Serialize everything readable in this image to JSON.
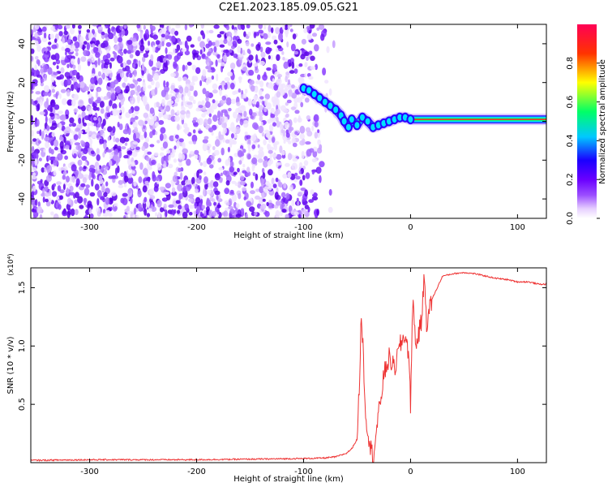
{
  "page": {
    "title": "C2E1.2023.185.09.05.G21"
  },
  "chart_data": [
    {
      "type": "heatmap",
      "xlabel": "Height of straight line (km)",
      "ylabel": "Frequency (Hz)",
      "xlim": [
        -355,
        127
      ],
      "ylim": [
        -50,
        50
      ],
      "x_ticks": [
        -300,
        -200,
        -100,
        0,
        100
      ],
      "y_ticks": [
        -40,
        -20,
        0,
        20,
        40
      ],
      "grid": false,
      "colorbar": {
        "label": "Normalized spectral amplitude",
        "range": [
          0.0,
          1.0
        ],
        "ticks": [
          0.0,
          0.2,
          0.4,
          0.6,
          0.8
        ],
        "colormap": [
          "#ffffff",
          "#e6cfff",
          "#9b4dff",
          "#6a00ff",
          "#1a00ff",
          "#00c8ff",
          "#00ff66",
          "#ffff00",
          "#ff3300",
          "#ff0055"
        ]
      },
      "noise_region": {
        "x_range": [
          -355,
          -70
        ],
        "dominant_color": "#7a1cf0",
        "fade_start_x": -115
      },
      "ridge": {
        "x": [
          -100,
          -95,
          -90,
          -85,
          -80,
          -75,
          -70,
          -65,
          -62,
          -58,
          -55,
          -50,
          -45,
          -40,
          -35,
          -30,
          -25,
          -20,
          -15,
          -10,
          -5,
          0,
          10,
          30,
          50,
          70,
          90,
          110,
          127
        ],
        "y": [
          17,
          16,
          14,
          12,
          10,
          8,
          6,
          3,
          0,
          -3,
          1,
          -2,
          2,
          0,
          -3,
          -2,
          -1,
          0,
          1,
          2,
          2,
          1,
          1,
          1,
          1,
          1,
          1,
          1,
          1
        ]
      }
    },
    {
      "type": "line",
      "xlabel": "Height of straight line (km)",
      "ylabel": "SNR (10 * v/v)",
      "y_multiplier": "(x10⁴)",
      "xlim": [
        -355,
        127
      ],
      "ylim": [
        0,
        1.67
      ],
      "x_ticks": [
        -300,
        -200,
        -100,
        0,
        100
      ],
      "y_ticks": [
        0.5,
        1.0,
        1.5
      ],
      "grid": false,
      "series": [
        {
          "color": "#ee3333",
          "x": [
            -355,
            -300,
            -250,
            -200,
            -150,
            -100,
            -80,
            -70,
            -60,
            -55,
            -50,
            -48,
            -46,
            -44,
            -42,
            -40,
            -38,
            -35,
            -30,
            -25,
            -20,
            -15,
            -10,
            -5,
            -2,
            0,
            2,
            5,
            10,
            13,
            15,
            20,
            25,
            30,
            40,
            50,
            60,
            70,
            80,
            90,
            100,
            110,
            120,
            127
          ],
          "y": [
            0.02,
            0.025,
            0.025,
            0.025,
            0.03,
            0.035,
            0.04,
            0.05,
            0.08,
            0.12,
            0.2,
            0.6,
            1.3,
            0.9,
            0.4,
            0.3,
            0.15,
            0.05,
            0.4,
            0.75,
            0.9,
            0.8,
            1.0,
            1.1,
            0.95,
            0.5,
            1.4,
            1.0,
            1.2,
            1.6,
            1.2,
            1.4,
            1.5,
            1.6,
            1.62,
            1.63,
            1.62,
            1.6,
            1.58,
            1.57,
            1.55,
            1.55,
            1.53,
            1.53
          ]
        }
      ]
    }
  ]
}
